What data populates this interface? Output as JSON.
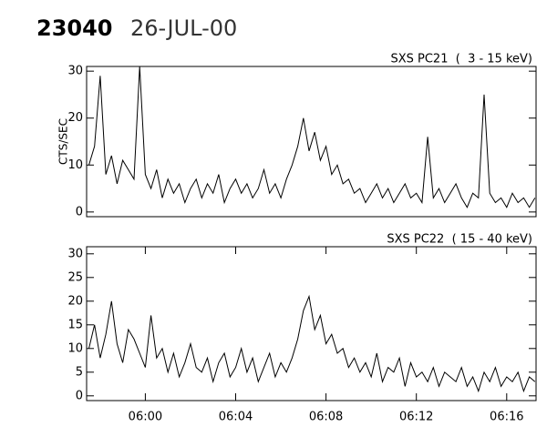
{
  "header": {
    "id": "23040",
    "date": "26-JUL-00"
  },
  "chart_data": [
    {
      "type": "line",
      "title": "SXS PC21  (  3 - 15 keV)",
      "ylabel": "CTS/SEC",
      "color": "#000000",
      "x": [
        357.5,
        357.75,
        358,
        358.25,
        358.5,
        358.75,
        359,
        359.25,
        359.5,
        359.75,
        360,
        360.25,
        360.5,
        360.75,
        361,
        361.25,
        361.5,
        361.75,
        362,
        362.25,
        362.5,
        362.75,
        363,
        363.25,
        363.5,
        363.75,
        364,
        364.25,
        364.5,
        364.75,
        365,
        365.25,
        365.5,
        365.75,
        366,
        366.25,
        366.5,
        366.75,
        367,
        367.25,
        367.5,
        367.75,
        368,
        368.25,
        368.5,
        368.75,
        369,
        369.25,
        369.5,
        369.75,
        370,
        370.25,
        370.5,
        370.75,
        371,
        371.25,
        371.5,
        371.75,
        372,
        372.25,
        372.5,
        372.75,
        373,
        373.25,
        373.5,
        373.75,
        374,
        374.25,
        374.5,
        374.75,
        375,
        375.25,
        375.5,
        375.75,
        376,
        376.25,
        376.5,
        376.75,
        377,
        377.25
      ],
      "values": [
        10,
        14,
        29,
        8,
        12,
        6,
        11,
        9,
        7,
        31,
        8,
        5,
        9,
        3,
        7,
        4,
        6,
        2,
        5,
        7,
        3,
        6,
        4,
        8,
        2,
        5,
        7,
        4,
        6,
        3,
        5,
        9,
        4,
        6,
        3,
        7,
        10,
        14,
        20,
        13,
        17,
        11,
        14,
        8,
        10,
        6,
        7,
        4,
        5,
        2,
        4,
        6,
        3,
        5,
        2,
        4,
        6,
        3,
        4,
        2,
        16,
        3,
        5,
        2,
        4,
        6,
        3,
        1,
        4,
        3,
        25,
        4,
        2,
        3,
        1,
        4,
        2,
        3,
        1,
        3
      ],
      "xlim": [
        357.4,
        377.3
      ],
      "ylim": [
        -1,
        31
      ],
      "yticks": [
        0,
        10,
        20,
        30
      ]
    },
    {
      "type": "line",
      "title": "SXS PC22  ( 15 - 40 keV)",
      "color": "#000000",
      "x": [
        357.5,
        357.75,
        358,
        358.25,
        358.5,
        358.75,
        359,
        359.25,
        359.5,
        359.75,
        360,
        360.25,
        360.5,
        360.75,
        361,
        361.25,
        361.5,
        361.75,
        362,
        362.25,
        362.5,
        362.75,
        363,
        363.25,
        363.5,
        363.75,
        364,
        364.25,
        364.5,
        364.75,
        365,
        365.25,
        365.5,
        365.75,
        366,
        366.25,
        366.5,
        366.75,
        367,
        367.25,
        367.5,
        367.75,
        368,
        368.25,
        368.5,
        368.75,
        369,
        369.25,
        369.5,
        369.75,
        370,
        370.25,
        370.5,
        370.75,
        371,
        371.25,
        371.5,
        371.75,
        372,
        372.25,
        372.5,
        372.75,
        373,
        373.25,
        373.5,
        373.75,
        374,
        374.25,
        374.5,
        374.75,
        375,
        375.25,
        375.5,
        375.75,
        376,
        376.25,
        376.5,
        376.75,
        377,
        377.25
      ],
      "values": [
        10,
        15,
        8,
        13,
        20,
        11,
        7,
        14,
        12,
        9,
        6,
        17,
        8,
        10,
        5,
        9,
        4,
        7,
        11,
        6,
        5,
        8,
        3,
        7,
        9,
        4,
        6,
        10,
        5,
        8,
        3,
        6,
        9,
        4,
        7,
        5,
        8,
        12,
        18,
        21,
        14,
        17,
        11,
        13,
        9,
        10,
        6,
        8,
        5,
        7,
        4,
        9,
        3,
        6,
        5,
        8,
        2,
        7,
        4,
        5,
        3,
        6,
        2,
        5,
        4,
        3,
        6,
        2,
        4,
        1,
        5,
        3,
        6,
        2,
        4,
        3,
        5,
        1,
        4,
        3
      ],
      "xlim": [
        357.4,
        377.3
      ],
      "ylim": [
        -1,
        31.5
      ],
      "yticks": [
        0,
        5,
        10,
        15,
        20,
        25,
        30
      ],
      "xticks": [
        {
          "value": 360,
          "label": "06:00"
        },
        {
          "value": 364,
          "label": "06:04"
        },
        {
          "value": 368,
          "label": "06:08"
        },
        {
          "value": 372,
          "label": "06:12"
        },
        {
          "value": 376,
          "label": "06:16"
        }
      ]
    }
  ]
}
